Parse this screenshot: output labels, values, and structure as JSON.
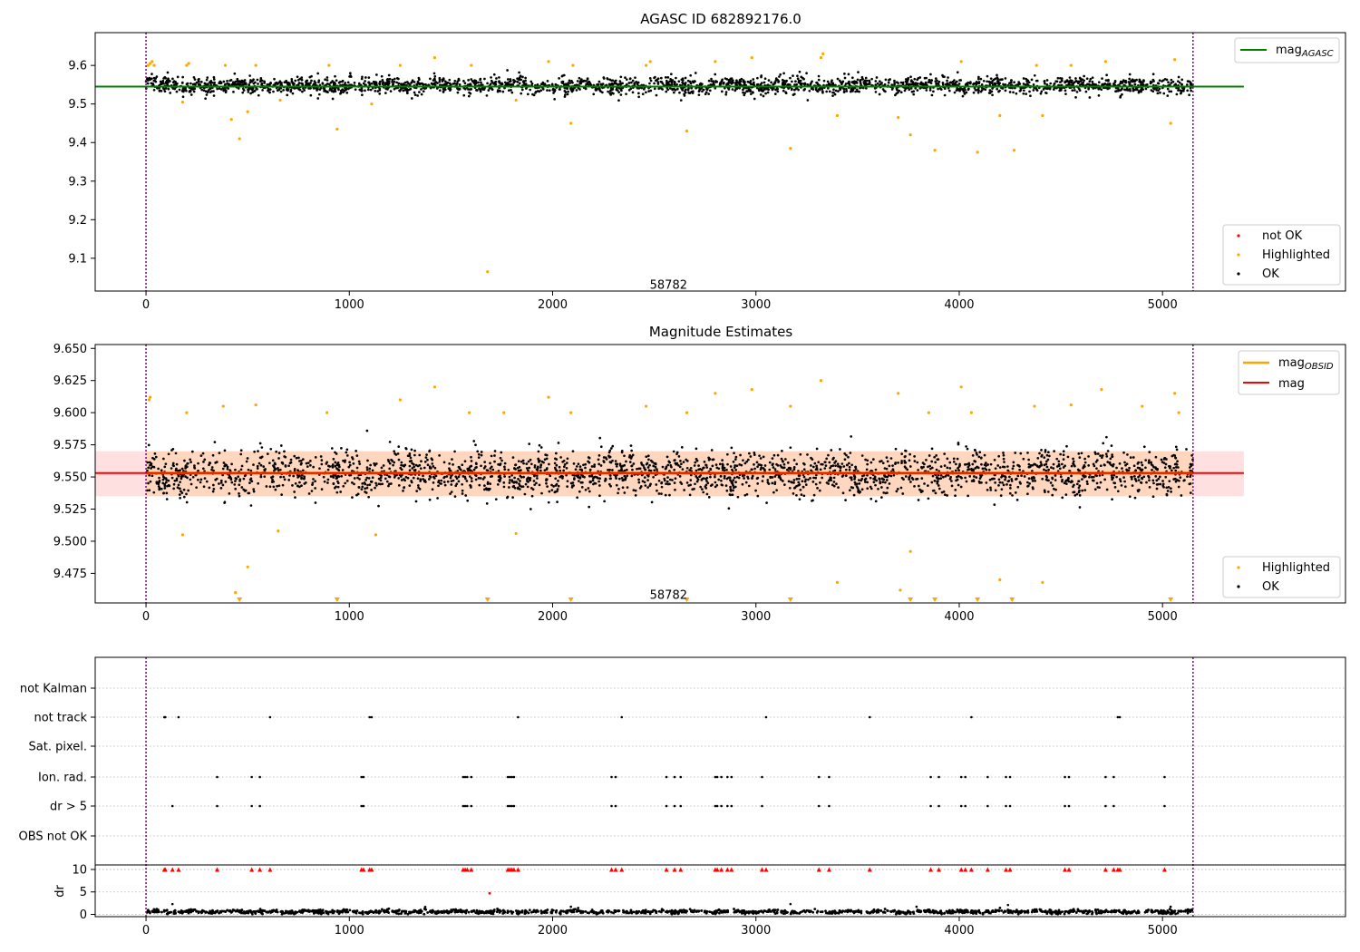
{
  "chart_data": [
    {
      "type": "scatter",
      "title": "AGASC ID 682892176.0",
      "xlim": [
        -250,
        5900
      ],
      "ylim": [
        9.015,
        9.685
      ],
      "xticks": [
        0,
        1000,
        2000,
        3000,
        4000,
        5000
      ],
      "yticks": [
        9.1,
        9.2,
        9.3,
        9.4,
        9.5,
        9.6
      ],
      "ytick_labels": [
        "9.1",
        "9.2",
        "9.3",
        "9.4",
        "9.5",
        "9.6"
      ],
      "annotation": {
        "text": "58782",
        "x": 2570,
        "y": 9.03
      },
      "vlines": [
        0,
        5150
      ],
      "hline": {
        "name": "mag$_{AGASC}$",
        "label_main": "mag",
        "label_sub": "AGASC",
        "y": 9.545,
        "x": [
          -250,
          5400
        ],
        "color": "#008000"
      },
      "legend_top": "upper right",
      "legend_bottom": "lower right",
      "series": [
        {
          "name": "not OK",
          "color": "#ff0000"
        },
        {
          "name": "Highlighted",
          "color": "#ffa500"
        },
        {
          "name": "OK",
          "color": "#000000"
        }
      ],
      "baseline": {
        "center": 9.548,
        "spread": 0.02,
        "x": [
          0,
          5150
        ],
        "count": 2500
      },
      "highlighted_points": [
        [
          10,
          9.6
        ],
        [
          20,
          9.605
        ],
        [
          30,
          9.61
        ],
        [
          40,
          9.6
        ],
        [
          180,
          9.505
        ],
        [
          200,
          9.6
        ],
        [
          210,
          9.605
        ],
        [
          390,
          9.6
        ],
        [
          420,
          9.46
        ],
        [
          460,
          9.41
        ],
        [
          500,
          9.48
        ],
        [
          540,
          9.6
        ],
        [
          660,
          9.51
        ],
        [
          900,
          9.6
        ],
        [
          940,
          9.435
        ],
        [
          1110,
          9.5
        ],
        [
          1250,
          9.6
        ],
        [
          1420,
          9.62
        ],
        [
          1600,
          9.6
        ],
        [
          1680,
          9.065
        ],
        [
          1820,
          9.51
        ],
        [
          1980,
          9.61
        ],
        [
          2090,
          9.45
        ],
        [
          2100,
          9.6
        ],
        [
          2460,
          9.6
        ],
        [
          2480,
          9.61
        ],
        [
          2660,
          9.43
        ],
        [
          2800,
          9.61
        ],
        [
          2980,
          9.62
        ],
        [
          3170,
          9.385
        ],
        [
          3320,
          9.62
        ],
        [
          3330,
          9.63
        ],
        [
          3400,
          9.47
        ],
        [
          3700,
          9.465
        ],
        [
          3760,
          9.42
        ],
        [
          3880,
          9.38
        ],
        [
          4010,
          9.61
        ],
        [
          4090,
          9.375
        ],
        [
          4200,
          9.47
        ],
        [
          4270,
          9.38
        ],
        [
          4380,
          9.6
        ],
        [
          4410,
          9.47
        ],
        [
          4550,
          9.6
        ],
        [
          4720,
          9.61
        ],
        [
          5040,
          9.45
        ],
        [
          5060,
          9.615
        ]
      ]
    },
    {
      "type": "scatter",
      "title": "Magnitude Estimates",
      "xlim": [
        -250,
        5900
      ],
      "ylim": [
        9.452,
        9.653
      ],
      "xticks": [
        0,
        1000,
        2000,
        3000,
        4000,
        5000
      ],
      "yticks": [
        9.475,
        9.5,
        9.525,
        9.55,
        9.575,
        9.6,
        9.625,
        9.65
      ],
      "ytick_labels": [
        "9.475",
        "9.500",
        "9.525",
        "9.550",
        "9.575",
        "9.600",
        "9.625",
        "9.650"
      ],
      "annotation": {
        "text": "58782",
        "x": 2570,
        "y": 9.458
      },
      "vlines": [
        0,
        5150
      ],
      "band_mag": {
        "low": 9.535,
        "high": 9.57,
        "x": [
          -250,
          5400
        ],
        "color": "#ff0000"
      },
      "band_obsid": {
        "low": 9.535,
        "high": 9.57,
        "x": [
          0,
          5150
        ],
        "color": "#ffa500"
      },
      "lines": [
        {
          "name": "mag$_{OBSID}$",
          "label_main": "mag",
          "label_sub": "OBSID",
          "y": 9.553,
          "x": [
            0,
            5150
          ],
          "color": "#ffa500"
        },
        {
          "name": "mag",
          "label_main": "mag",
          "label_sub": "",
          "y": 9.553,
          "x": [
            -250,
            5400
          ],
          "color": "#ff0000"
        }
      ],
      "legend_top": "upper right",
      "legend_bottom": "lower right",
      "series": [
        {
          "name": "Highlighted",
          "color": "#ffa500"
        },
        {
          "name": "OK",
          "color": "#000000"
        }
      ],
      "baseline": {
        "center": 9.553,
        "spread": 0.016,
        "x": [
          0,
          5150
        ],
        "count": 2500
      },
      "highlighted_points": [
        [
          15,
          9.61
        ],
        [
          20,
          9.612
        ],
        [
          180,
          9.505
        ],
        [
          200,
          9.6
        ],
        [
          380,
          9.605
        ],
        [
          440,
          9.46
        ],
        [
          500,
          9.48
        ],
        [
          540,
          9.606
        ],
        [
          650,
          9.508
        ],
        [
          890,
          9.6
        ],
        [
          1130,
          9.505
        ],
        [
          1250,
          9.61
        ],
        [
          1420,
          9.62
        ],
        [
          1590,
          9.6
        ],
        [
          1760,
          9.6
        ],
        [
          1820,
          9.506
        ],
        [
          1980,
          9.612
        ],
        [
          2090,
          9.6
        ],
        [
          2460,
          9.605
        ],
        [
          2660,
          9.6
        ],
        [
          2800,
          9.615
        ],
        [
          2980,
          9.618
        ],
        [
          3170,
          9.605
        ],
        [
          3320,
          9.625
        ],
        [
          3400,
          9.468
        ],
        [
          3700,
          9.615
        ],
        [
          3710,
          9.462
        ],
        [
          3760,
          9.492
        ],
        [
          3850,
          9.6
        ],
        [
          4010,
          9.62
        ],
        [
          4060,
          9.6
        ],
        [
          4200,
          9.47
        ],
        [
          4370,
          9.605
        ],
        [
          4410,
          9.468
        ],
        [
          4550,
          9.606
        ],
        [
          4700,
          9.618
        ],
        [
          4900,
          9.605
        ],
        [
          5060,
          9.615
        ],
        [
          5080,
          9.6
        ]
      ],
      "offscale_markers_x": [
        460,
        940,
        1680,
        2090,
        2660,
        3170,
        3760,
        3880,
        4090,
        4260,
        5040
      ]
    },
    {
      "type": "scatter",
      "title": "",
      "xlim": [
        -250,
        5900
      ],
      "xticks": [
        0,
        1000,
        2000,
        3000,
        4000,
        5000
      ],
      "vlines": [
        0,
        5150
      ],
      "category_ticks": [
        "not Kalman",
        "not track",
        "Sat. pixel.",
        "Ion. rad.",
        "dr > 5",
        "OBS not OK"
      ],
      "flag_points": {
        "not track": [
          90,
          95,
          160,
          610,
          1100,
          1110,
          1830,
          2340,
          3050,
          3560,
          4060,
          4780,
          4790
        ],
        "Ion. rad.": [
          350,
          520,
          560,
          1060,
          1070,
          1560,
          1570,
          1580,
          1600,
          1780,
          1790,
          1800,
          1810,
          2290,
          2310,
          2560,
          2600,
          2630,
          2800,
          2810,
          2830,
          2860,
          2880,
          3030,
          3310,
          3360,
          3860,
          3900,
          4010,
          4030,
          4140,
          4230,
          4250,
          4520,
          4540,
          4720,
          4760,
          5010
        ],
        "dr > 5": [
          130,
          350,
          520,
          560,
          1060,
          1070,
          1560,
          1570,
          1580,
          1600,
          1780,
          1790,
          1800,
          1810,
          2290,
          2310,
          2560,
          2600,
          2630,
          2800,
          2810,
          2830,
          2860,
          2880,
          3030,
          3310,
          3360,
          3860,
          3900,
          4010,
          4030,
          4140,
          4230,
          4250,
          4520,
          4540,
          4720,
          4760,
          5010
        ]
      },
      "dr_panel": {
        "ylabel": "dr",
        "ylim": [
          -0.5,
          11
        ],
        "yticks": [
          0,
          5,
          10
        ],
        "ytick_labels": [
          "0",
          "5",
          "10"
        ],
        "baseline": {
          "center": 0.6,
          "spread": 0.35,
          "x": [
            0,
            5150
          ],
          "count": 1500
        },
        "red_markers_x": [
          90,
          95,
          130,
          160,
          350,
          520,
          560,
          610,
          1060,
          1070,
          1100,
          1110,
          1560,
          1570,
          1580,
          1600,
          1780,
          1790,
          1800,
          1810,
          1830,
          2290,
          2310,
          2340,
          2560,
          2600,
          2630,
          2800,
          2810,
          2830,
          2860,
          2880,
          3030,
          3050,
          3310,
          3360,
          3560,
          3860,
          3900,
          4010,
          4030,
          4060,
          4140,
          4230,
          4250,
          4520,
          4540,
          4720,
          4760,
          4780,
          4790,
          5010
        ],
        "red_markers_y": 10,
        "red_points": [
          [
            1690,
            4.7
          ]
        ],
        "black_outliers": [
          [
            130,
            2.3
          ],
          [
            2090,
            1.7
          ],
          [
            3170,
            2.3
          ],
          [
            3790,
            1.7
          ],
          [
            4240,
            2.1
          ],
          [
            5040,
            1.7
          ]
        ]
      }
    }
  ]
}
